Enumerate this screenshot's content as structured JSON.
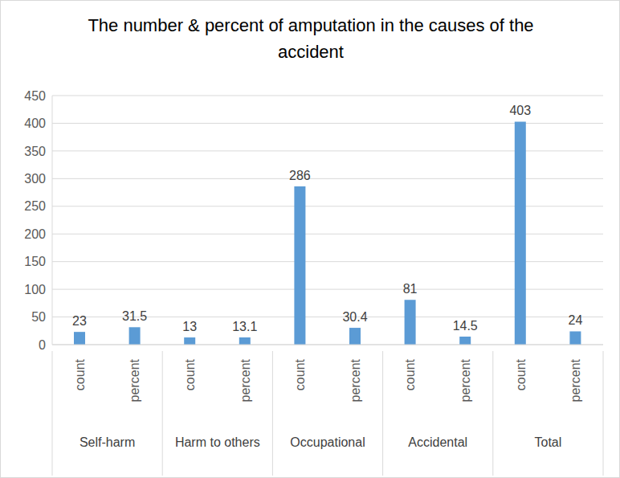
{
  "chart_data": {
    "type": "bar",
    "title": "The number & percent of amputation in the causes of the accident",
    "categories": [
      "count",
      "percent",
      "count",
      "percent",
      "count",
      "percent",
      "count",
      "percent",
      "count",
      "percent"
    ],
    "groups": [
      "Self-harm",
      "Harm to others",
      "Occupational",
      "Accidental",
      "Total"
    ],
    "values": [
      23,
      31.5,
      13,
      13.1,
      286,
      30.4,
      81,
      14.5,
      403,
      24
    ],
    "color": "#5b9bd5",
    "ylim": [
      0,
      450
    ],
    "yticks": [
      0,
      50,
      100,
      150,
      200,
      250,
      300,
      350,
      400,
      450
    ],
    "grid": true,
    "data_labels": true
  }
}
